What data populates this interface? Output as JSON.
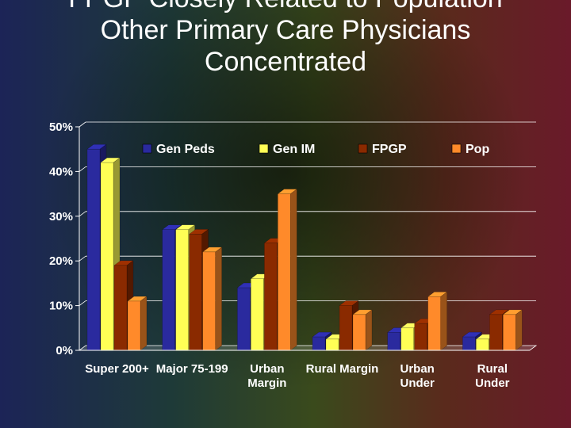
{
  "title_lines": [
    "FPGP Closely Related to Population",
    "Other Primary Care Physicians",
    "Concentrated"
  ],
  "chart_data": {
    "type": "bar",
    "title": "FPGP Closely Related to Population Other Primary Care Physicians Concentrated",
    "categories": [
      [
        "Super 200+"
      ],
      [
        "Major 75-199"
      ],
      [
        "Urban",
        "Margin"
      ],
      [
        "Rural Margin"
      ],
      [
        "Urban",
        "Under"
      ],
      [
        "Rural",
        "Under"
      ]
    ],
    "series": [
      {
        "name": "Gen Peds",
        "color": "#2a2a9e",
        "values": [
          45,
          27,
          14,
          3,
          4,
          3
        ]
      },
      {
        "name": "Gen IM",
        "color": "#ffff55",
        "values": [
          42,
          27,
          16,
          2.5,
          5,
          2.5
        ]
      },
      {
        "name": "FPGP",
        "color": "#8a2a00",
        "values": [
          19,
          26,
          24,
          10,
          6,
          8
        ]
      },
      {
        "name": "Pop",
        "color": "#ff8a2a",
        "values": [
          11,
          22,
          35,
          8,
          12,
          8
        ]
      }
    ],
    "yticks": [
      "0%",
      "10%",
      "20%",
      "30%",
      "40%",
      "50%"
    ],
    "ylim": [
      0,
      50
    ],
    "grid": true,
    "legend": "top"
  }
}
